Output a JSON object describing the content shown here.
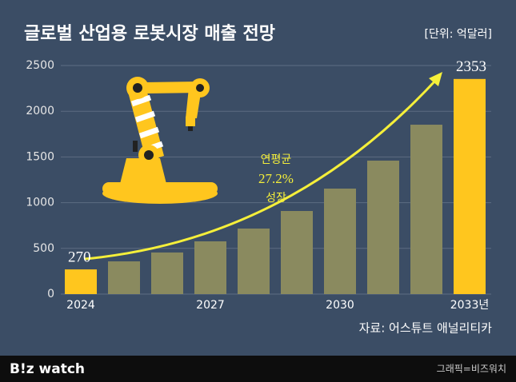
{
  "chart_data": {
    "type": "bar",
    "title": "글로벌 산업용 로봇시장 매출 전망",
    "subtitle": "[단위: 억달러]",
    "categories": [
      "2024",
      null,
      null,
      "2027",
      null,
      null,
      "2030",
      null,
      null,
      "2033년"
    ],
    "values": [
      270,
      358,
      455,
      577,
      717,
      909,
      1154,
      1460,
      1853,
      2353
    ],
    "colors": [
      "#ffc61e",
      "#8a8a5f",
      "#8a8a5f",
      "#8a8a5f",
      "#8a8a5f",
      "#8a8a5f",
      "#8a8a5f",
      "#8a8a5f",
      "#8a8a5f",
      "#ffc61e"
    ],
    "ylim": [
      0,
      2500
    ],
    "yticks": [
      0,
      500,
      1000,
      1500,
      2000,
      2500
    ],
    "grid": true,
    "annotation": [
      "연평균",
      "27.2%",
      "성장"
    ],
    "source": "자료: 어스튜트 애널리티카"
  },
  "footer": {
    "logo": "B!z watch",
    "credit": "그래픽=비즈워치"
  }
}
